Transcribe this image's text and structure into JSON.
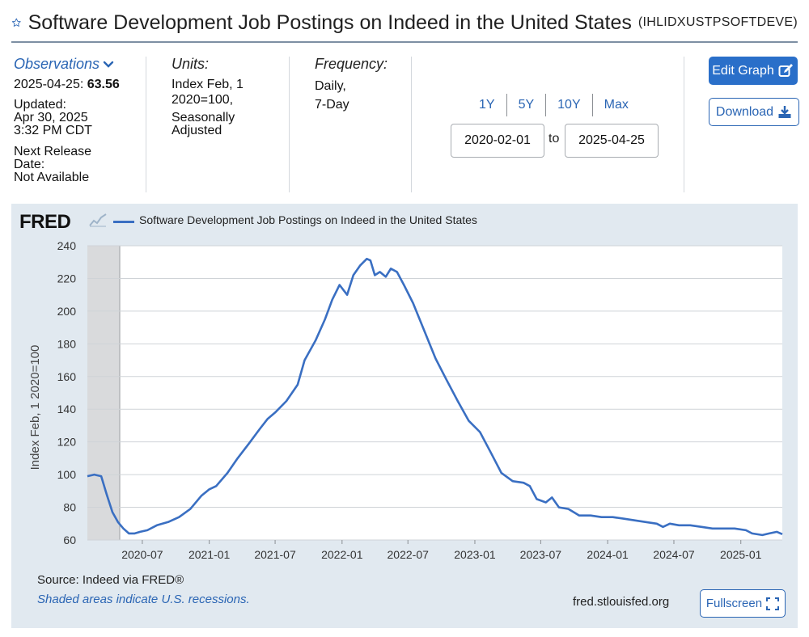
{
  "header": {
    "title": "Software Development Job Postings on Indeed in the United States",
    "series_id": "(IHLIDXUSTPSOFTDEVE)"
  },
  "observations": {
    "link_label": "Observations",
    "latest_date": "2025-04-25:",
    "latest_value": "63.56",
    "updated_label": "Updated:",
    "updated_date": "Apr 30, 2025",
    "updated_time": "3:32 PM CDT",
    "next_release_label_1": "Next Release",
    "next_release_label_2": "Date:",
    "next_release_value": "Not Available"
  },
  "units": {
    "heading": "Units:",
    "line1": "Index Feb, 1",
    "line2": "2020=100,",
    "line3": "Seasonally",
    "line4": "Adjusted"
  },
  "frequency": {
    "heading": "Frequency:",
    "line1": "Daily,",
    "line2": "7-Day"
  },
  "range": {
    "links": [
      "1Y",
      "5Y",
      "10Y",
      "Max"
    ],
    "start": "2020-02-01",
    "to_label": "to",
    "end": "2025-04-25"
  },
  "buttons": {
    "edit_graph": "Edit Graph",
    "download": "Download",
    "fullscreen": "Fullscreen"
  },
  "chart_panel": {
    "logo": "FRED",
    "source": "Source: Indeed via FRED®",
    "recession_note": "Shaded areas indicate U.S. recessions.",
    "url": "fred.stlouisfed.org"
  },
  "colors": {
    "accent": "#2a65b4",
    "line": "#3a6fc2",
    "panel_bg": "#e1e9f0",
    "recession": "#d9dadc"
  },
  "chart_data": {
    "type": "line",
    "title": "",
    "legend": "Software Development Job Postings on Indeed in the United States",
    "xlabel": "",
    "ylabel": "Index Feb, 1 2020=100",
    "ylim": [
      60,
      240
    ],
    "xlim": [
      "2020-02-01",
      "2025-04-25"
    ],
    "y_ticks": [
      60,
      80,
      100,
      120,
      140,
      160,
      180,
      200,
      220,
      240
    ],
    "x_ticks": [
      "2020-07",
      "2021-01",
      "2021-07",
      "2022-01",
      "2022-07",
      "2023-01",
      "2023-07",
      "2024-01",
      "2024-07",
      "2025-01"
    ],
    "recession": {
      "start": "2020-02-01",
      "end": "2020-04-30"
    },
    "series": [
      {
        "name": "Software Development Job Postings on Indeed in the United States",
        "points": [
          [
            "2020-02-01",
            99
          ],
          [
            "2020-02-20",
            100
          ],
          [
            "2020-03-10",
            99
          ],
          [
            "2020-03-25",
            88
          ],
          [
            "2020-04-10",
            77
          ],
          [
            "2020-04-25",
            71
          ],
          [
            "2020-05-10",
            67
          ],
          [
            "2020-05-25",
            64
          ],
          [
            "2020-06-10",
            64
          ],
          [
            "2020-06-25",
            65
          ],
          [
            "2020-07-15",
            66
          ],
          [
            "2020-08-10",
            69
          ],
          [
            "2020-09-10",
            71
          ],
          [
            "2020-10-10",
            74
          ],
          [
            "2020-11-10",
            79
          ],
          [
            "2020-12-10",
            87
          ],
          [
            "2021-01-01",
            91
          ],
          [
            "2021-01-20",
            93
          ],
          [
            "2021-02-20",
            101
          ],
          [
            "2021-03-20",
            110
          ],
          [
            "2021-04-20",
            119
          ],
          [
            "2021-05-20",
            128
          ],
          [
            "2021-06-10",
            134
          ],
          [
            "2021-07-01",
            138
          ],
          [
            "2021-08-01",
            145
          ],
          [
            "2021-09-01",
            155
          ],
          [
            "2021-09-20",
            170
          ],
          [
            "2021-10-20",
            182
          ],
          [
            "2021-11-15",
            195
          ],
          [
            "2021-12-05",
            207
          ],
          [
            "2021-12-25",
            216
          ],
          [
            "2022-01-15",
            210
          ],
          [
            "2022-02-01",
            222
          ],
          [
            "2022-02-20",
            228
          ],
          [
            "2022-03-10",
            232
          ],
          [
            "2022-03-20",
            231
          ],
          [
            "2022-04-01",
            222
          ],
          [
            "2022-04-15",
            224
          ],
          [
            "2022-05-01",
            221
          ],
          [
            "2022-05-15",
            226
          ],
          [
            "2022-06-01",
            224
          ],
          [
            "2022-06-20",
            216
          ],
          [
            "2022-07-15",
            205
          ],
          [
            "2022-08-15",
            188
          ],
          [
            "2022-09-15",
            171
          ],
          [
            "2022-10-15",
            158
          ],
          [
            "2022-11-15",
            145
          ],
          [
            "2022-12-15",
            133
          ],
          [
            "2023-01-15",
            126
          ],
          [
            "2023-02-15",
            113
          ],
          [
            "2023-03-15",
            101
          ],
          [
            "2023-04-15",
            96
          ],
          [
            "2023-05-15",
            95
          ],
          [
            "2023-06-01",
            93
          ],
          [
            "2023-06-20",
            85
          ],
          [
            "2023-07-15",
            83
          ],
          [
            "2023-08-01",
            86
          ],
          [
            "2023-08-20",
            80
          ],
          [
            "2023-09-15",
            79
          ],
          [
            "2023-10-15",
            75
          ],
          [
            "2023-11-15",
            75
          ],
          [
            "2023-12-15",
            74
          ],
          [
            "2024-01-15",
            74
          ],
          [
            "2024-02-15",
            73
          ],
          [
            "2024-03-15",
            72
          ],
          [
            "2024-04-15",
            71
          ],
          [
            "2024-05-15",
            70
          ],
          [
            "2024-06-01",
            68
          ],
          [
            "2024-06-20",
            70
          ],
          [
            "2024-07-15",
            69
          ],
          [
            "2024-08-15",
            69
          ],
          [
            "2024-09-15",
            68
          ],
          [
            "2024-10-15",
            67
          ],
          [
            "2024-11-15",
            67
          ],
          [
            "2024-12-15",
            67
          ],
          [
            "2025-01-15",
            66
          ],
          [
            "2025-02-01",
            64
          ],
          [
            "2025-03-01",
            63
          ],
          [
            "2025-03-20",
            64
          ],
          [
            "2025-04-10",
            65
          ],
          [
            "2025-04-25",
            63.56
          ]
        ]
      }
    ]
  }
}
